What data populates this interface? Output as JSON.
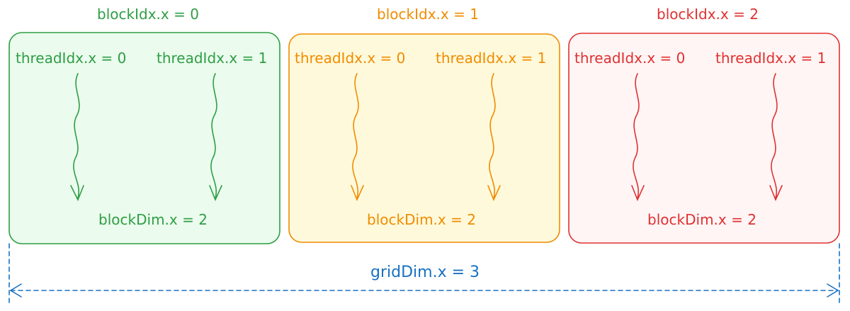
{
  "colors": {
    "green": "#2f9e44",
    "green_fill": "#ebfbee",
    "orange": "#f08c00",
    "orange_fill": "#fff9db",
    "red": "#e03131",
    "red_fill": "#fff5f5",
    "blue": "#1971c2"
  },
  "blocks": [
    {
      "title": "blockIdx.x = 0",
      "thread0": "threadIdx.x = 0",
      "thread1": "threadIdx.x = 1",
      "dim": "blockDim.x = 2"
    },
    {
      "title": "blockIdx.x = 1",
      "thread0": "threadIdx.x = 0",
      "thread1": "threadIdx.x = 1",
      "dim": "blockDim.x = 2"
    },
    {
      "title": "blockIdx.x = 2",
      "thread0": "threadIdx.x = 0",
      "thread1": "threadIdx.x = 1",
      "dim": "blockDim.x = 2"
    }
  ],
  "grid": {
    "label": "gridDim.x = 3"
  }
}
